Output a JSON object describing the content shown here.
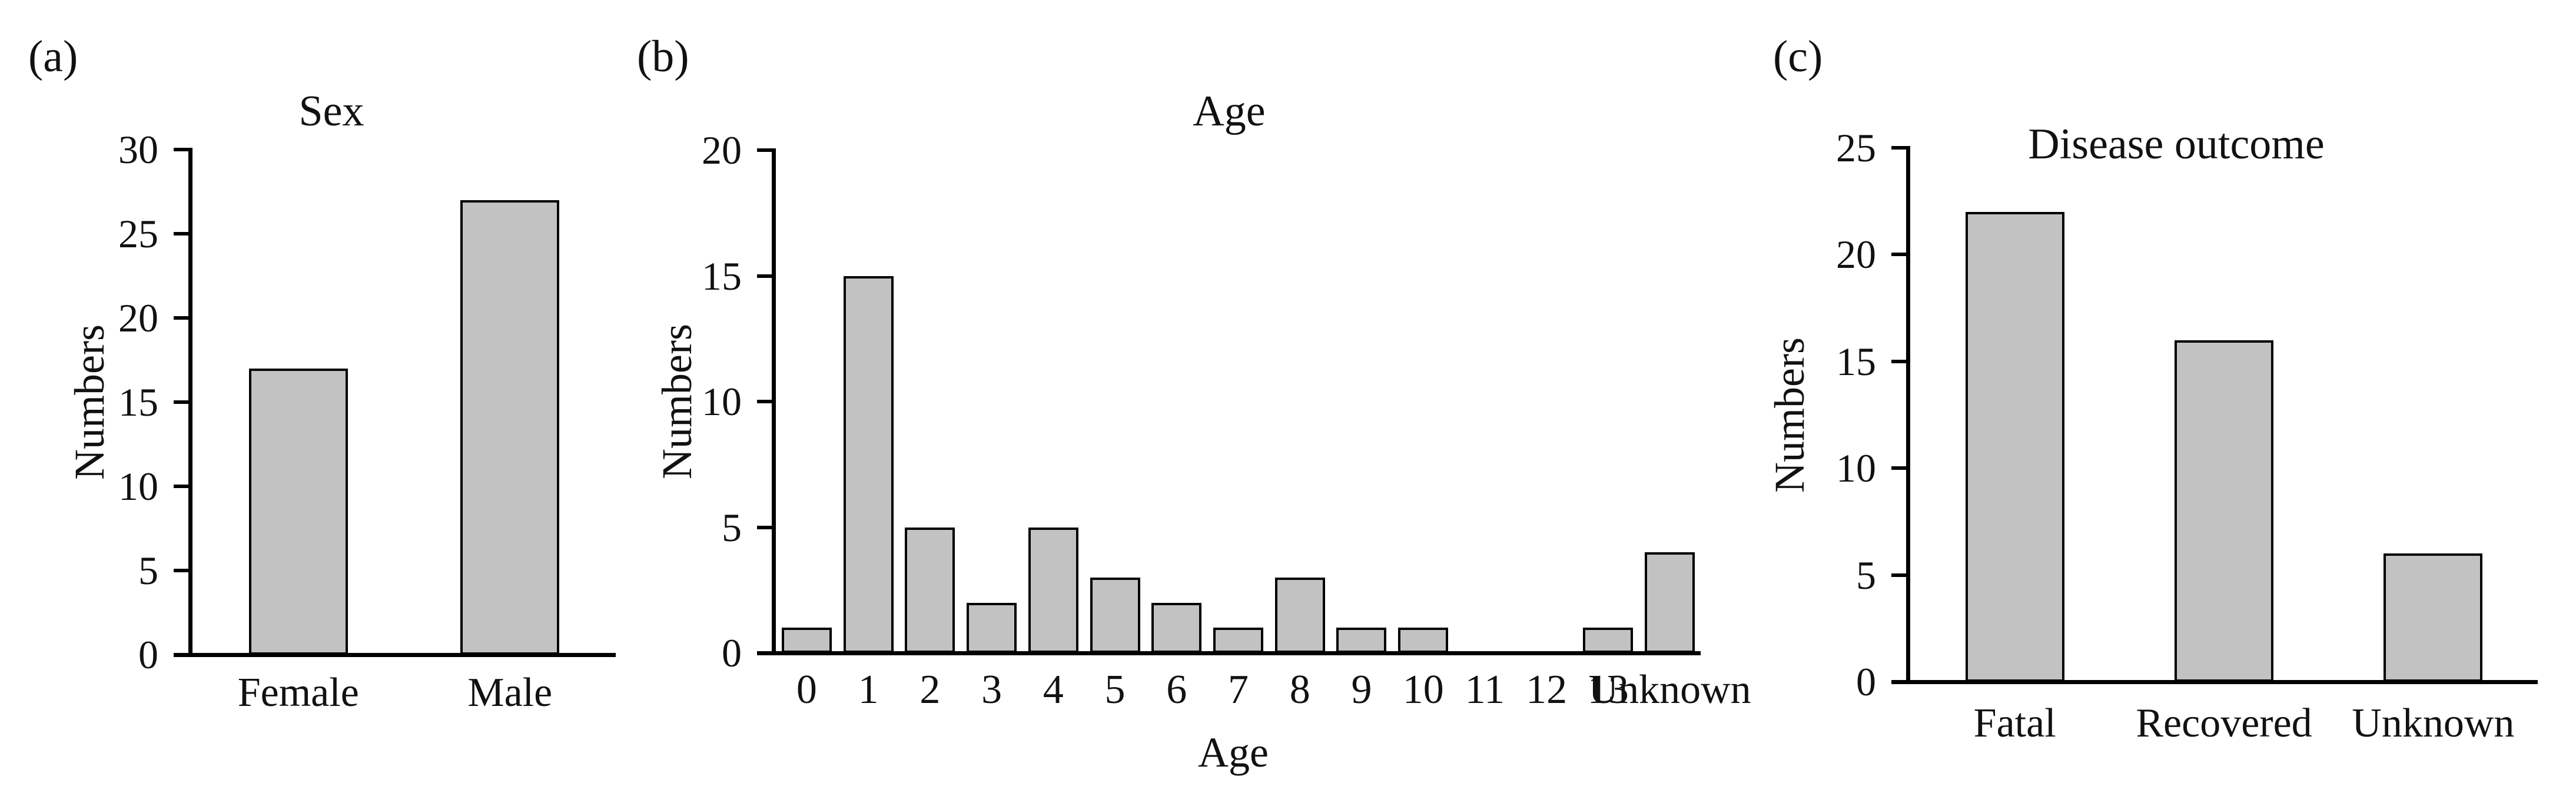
{
  "figure": {
    "background": "#ffffff",
    "colors": {
      "bar_fill": "#c2c2c2",
      "bar_border": "#000000",
      "axis": "#000000",
      "text": "#111111"
    }
  },
  "chart_data": [
    {
      "type": "bar",
      "panel_label": "(a)",
      "title": "Sex",
      "categories": [
        "Female",
        "Male"
      ],
      "values": [
        17,
        27
      ],
      "xlabel": "",
      "ylabel": "Numbers",
      "ylim": [
        0,
        30
      ],
      "ytick_step": 5,
      "yticks": [
        0,
        5,
        10,
        15,
        20,
        25,
        30
      ],
      "grid": false,
      "legend": "none"
    },
    {
      "type": "bar",
      "panel_label": "(b)",
      "title": "Age",
      "categories": [
        "0",
        "1",
        "2",
        "3",
        "4",
        "5",
        "6",
        "7",
        "8",
        "9",
        "10",
        "11",
        "12",
        "13",
        "Unknown"
      ],
      "values": [
        1,
        15,
        5,
        2,
        5,
        3,
        2,
        1,
        3,
        1,
        1,
        0,
        0,
        1,
        4
      ],
      "xlabel": "Age",
      "ylabel": "Numbers",
      "ylim": [
        0,
        20
      ],
      "ytick_step": 5,
      "yticks": [
        0,
        5,
        10,
        15,
        20
      ],
      "grid": false,
      "legend": "none"
    },
    {
      "type": "bar",
      "panel_label": "(c)",
      "title": "Disease outcome",
      "categories": [
        "Fatal",
        "Recovered",
        "Unknown"
      ],
      "values": [
        22,
        16,
        6
      ],
      "xlabel": "",
      "ylabel": "Numbers",
      "ylim": [
        0,
        25
      ],
      "ytick_step": 5,
      "yticks": [
        0,
        5,
        10,
        15,
        20,
        25
      ],
      "grid": false,
      "legend": "none"
    }
  ]
}
